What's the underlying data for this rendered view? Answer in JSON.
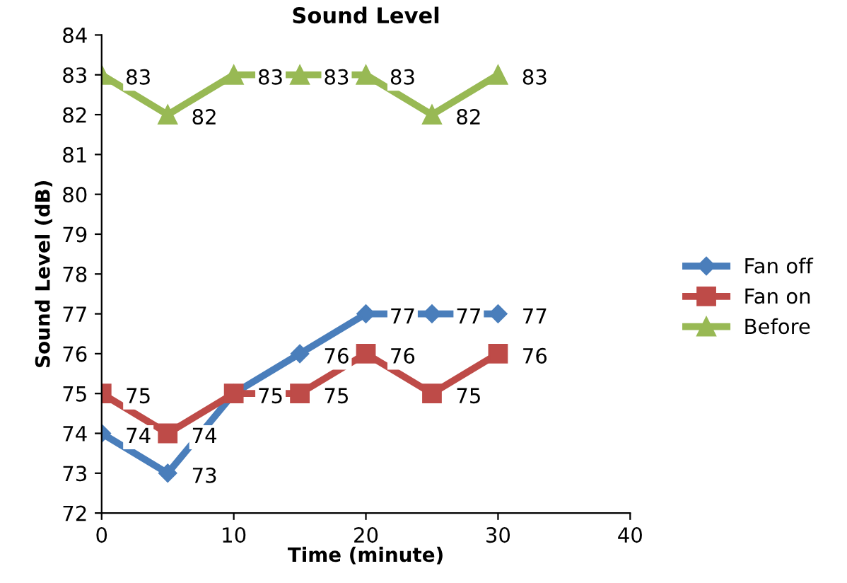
{
  "chart_data": {
    "type": "line",
    "title": "Sound Level",
    "xlabel": "Time (minute)",
    "ylabel": "Sound Level (dB)",
    "x": [
      0,
      5,
      10,
      15,
      20,
      25,
      30
    ],
    "series": [
      {
        "name": "Fan off",
        "color": "#4a7ebb",
        "marker": "diamond",
        "values": [
          74,
          73,
          75,
          76,
          77,
          77,
          77
        ],
        "value_labels": [
          "74",
          "73",
          null,
          "76",
          "77",
          "77",
          "77"
        ]
      },
      {
        "name": "Fan on",
        "color": "#be4b48",
        "marker": "square",
        "values": [
          75,
          74,
          75,
          75,
          76,
          75,
          76
        ],
        "value_labels": [
          "75",
          "74",
          "75",
          "75",
          "76",
          "75",
          "76"
        ]
      },
      {
        "name": "Before",
        "color": "#98b954",
        "marker": "triangle",
        "values": [
          83,
          82,
          83,
          83,
          83,
          82,
          83
        ],
        "value_labels": [
          "83",
          "82",
          "83",
          "83",
          "83",
          "82",
          "83"
        ]
      }
    ],
    "xlim": [
      0,
      40
    ],
    "xticks": [
      0,
      10,
      20,
      30,
      40
    ],
    "ylim": [
      72,
      84
    ],
    "yticks": [
      72,
      73,
      74,
      75,
      76,
      77,
      78,
      79,
      80,
      81,
      82,
      83,
      84
    ],
    "grid": false,
    "legend": "right"
  }
}
